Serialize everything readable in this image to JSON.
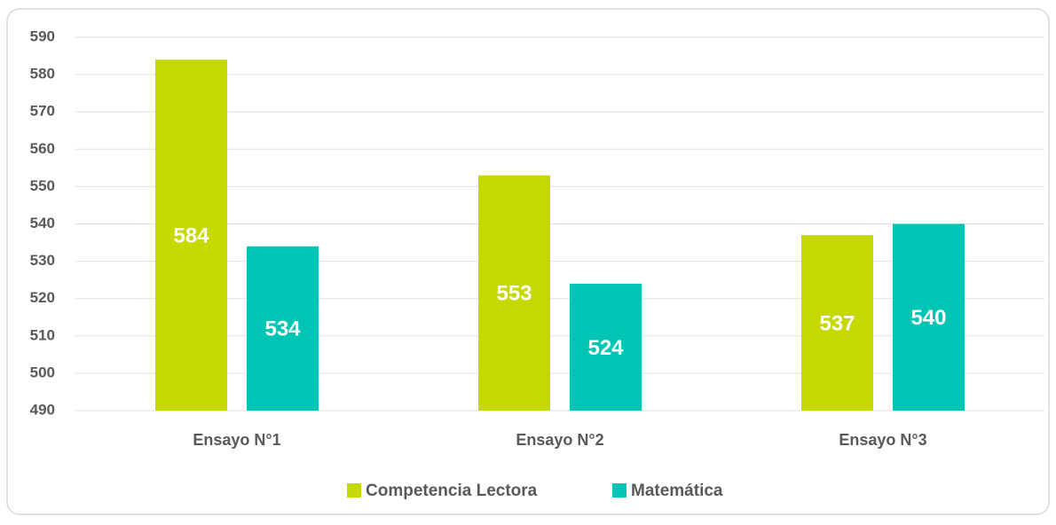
{
  "chart_data": {
    "type": "bar",
    "categories": [
      "Ensayo N°1",
      "Ensayo N°2",
      "Ensayo N°3"
    ],
    "series": [
      {
        "name": "Competencia Lectora",
        "color": "#c5d800",
        "values": [
          584,
          553,
          537
        ]
      },
      {
        "name": "Matemática",
        "color": "#00c5b4",
        "values": [
          534,
          524,
          540
        ]
      }
    ],
    "ylim": [
      490,
      590
    ],
    "yticks": [
      490,
      500,
      510,
      520,
      530,
      540,
      550,
      560,
      570,
      580,
      590
    ],
    "grid": true,
    "legend": "bottom"
  }
}
